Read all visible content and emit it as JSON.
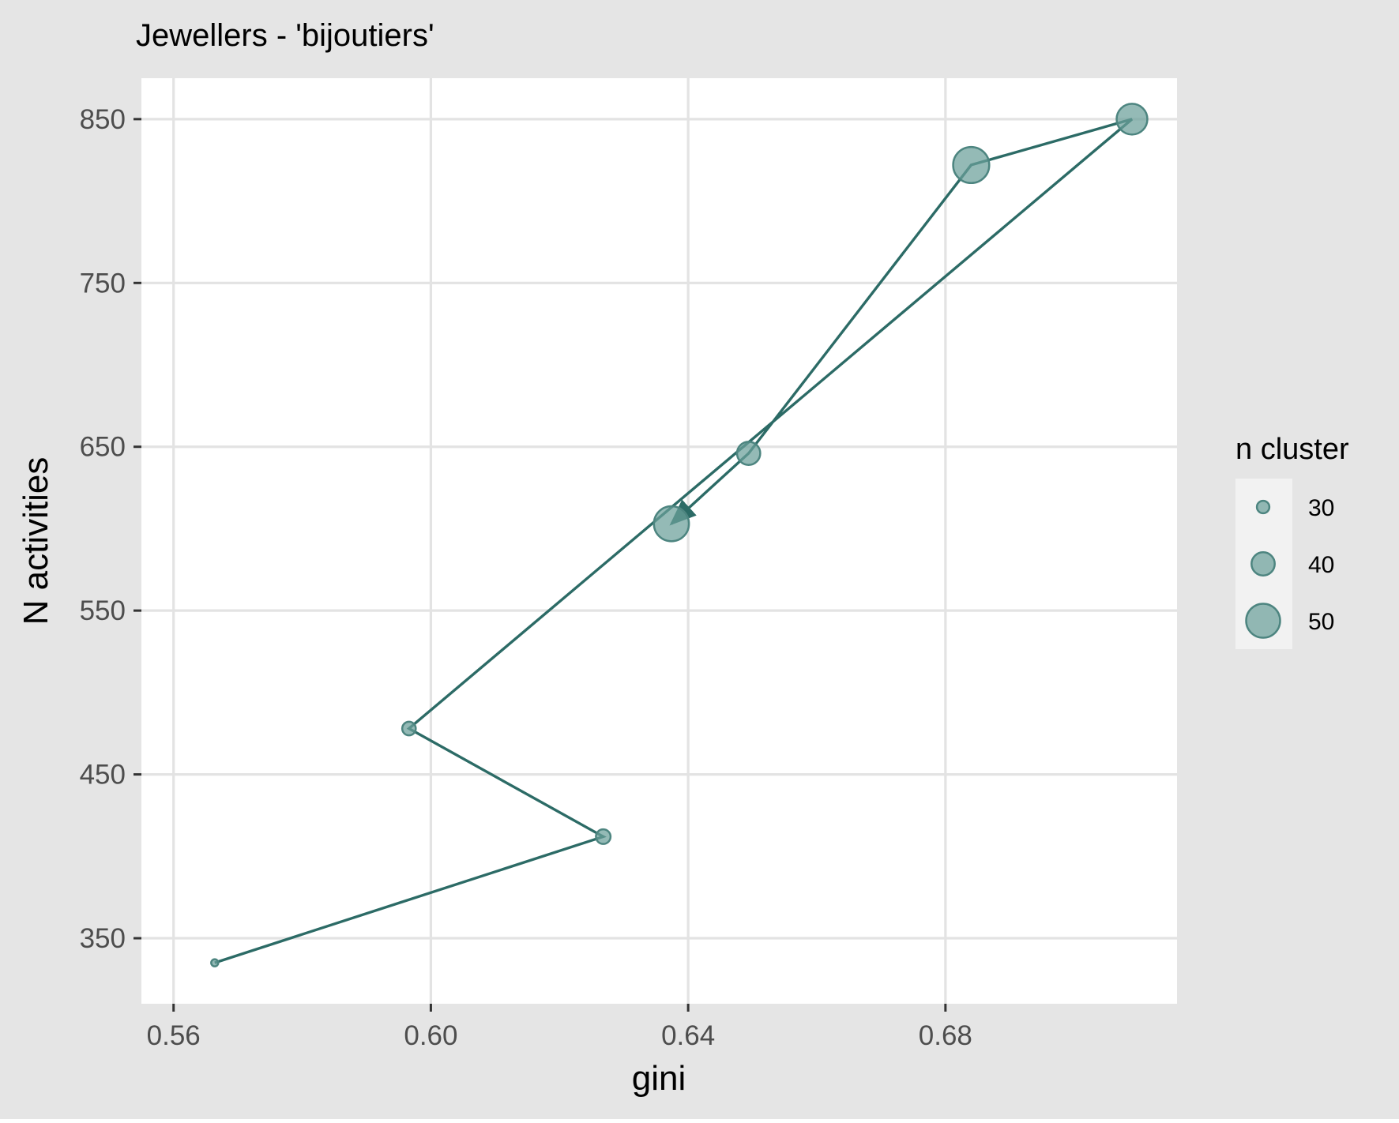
{
  "chart_data": {
    "type": "scatter",
    "title": "Jewellers - 'bijoutiers'",
    "xlabel": "gini",
    "ylabel": "N activities",
    "xlim": [
      0.555,
      0.716
    ],
    "ylim": [
      310,
      875
    ],
    "x_ticks": [
      0.56,
      0.6,
      0.64,
      0.68
    ],
    "x_tick_labels": [
      "0.56",
      "0.60",
      "0.64",
      "0.68"
    ],
    "y_ticks": [
      350,
      450,
      550,
      650,
      750,
      850
    ],
    "y_tick_labels": [
      "350",
      "450",
      "550",
      "650",
      "750",
      "850"
    ],
    "grid": true,
    "path_connects_points_in_order": true,
    "arrow_at_end": true,
    "series": [
      {
        "points": [
          {
            "x": 0.5664,
            "y": 335,
            "n_cluster": 25
          },
          {
            "x": 0.6268,
            "y": 412,
            "n_cluster": 32
          },
          {
            "x": 0.5966,
            "y": 478,
            "n_cluster": 31
          },
          {
            "x": 0.709,
            "y": 850,
            "n_cluster": 47
          },
          {
            "x": 0.684,
            "y": 822,
            "n_cluster": 52
          },
          {
            "x": 0.6494,
            "y": 646,
            "n_cluster": 40
          },
          {
            "x": 0.6374,
            "y": 603,
            "n_cluster": 51
          }
        ]
      }
    ],
    "legend": {
      "title": "n cluster",
      "position": "right",
      "entries": [
        {
          "label": "30",
          "value": 30
        },
        {
          "label": "40",
          "value": 40
        },
        {
          "label": "50",
          "value": 50
        }
      ]
    },
    "colors": {
      "line": "#2c6b66",
      "point_fill": "#6b9f9a",
      "point_stroke": "#4d8580",
      "panel": "#ffffff",
      "background": "#e5e5e5",
      "grid": "#e3e3e3"
    }
  }
}
